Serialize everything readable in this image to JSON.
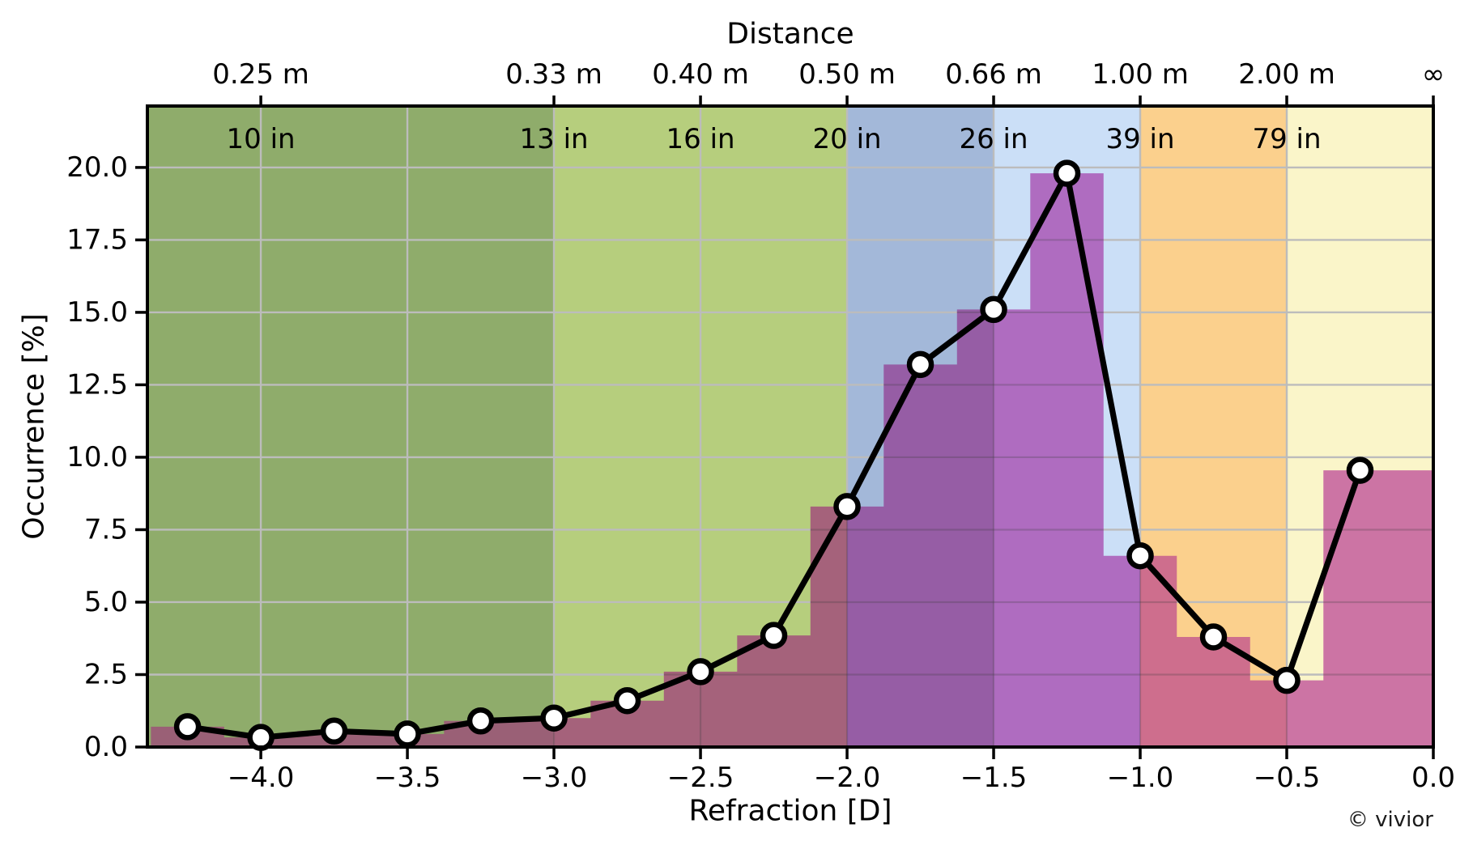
{
  "chart_data": {
    "type": "line",
    "title": "",
    "top_axis_title": "Distance",
    "xlabel": "Refraction [D]",
    "ylabel": "Occurrence [%]",
    "watermark": "© vivior",
    "xlim": [
      -4.387,
      0
    ],
    "ylim": [
      0,
      22.12
    ],
    "grid": true,
    "x": [
      -4.25,
      -4.0,
      -3.75,
      -3.5,
      -3.25,
      -3.0,
      -2.75,
      -2.5,
      -2.25,
      -2.0,
      -1.75,
      -1.5,
      -1.25,
      -1.0,
      -0.75,
      -0.5,
      -0.25
    ],
    "series": [
      {
        "name": "occurrence line",
        "type": "line",
        "values": [
          0.7,
          0.33,
          0.55,
          0.45,
          0.9,
          1.0,
          1.6,
          2.6,
          3.85,
          8.3,
          13.2,
          15.1,
          19.8,
          6.6,
          3.8,
          2.3,
          9.55
        ]
      },
      {
        "name": "occurrence histogram",
        "type": "bar",
        "bar_width": 0.25,
        "x": [
          -4.25,
          -4.0,
          -3.75,
          -3.5,
          -3.25,
          -3.0,
          -2.75,
          -2.5,
          -2.25,
          -2.0,
          -1.75,
          -1.5,
          -1.25,
          -1.0,
          -0.75,
          -0.5,
          -0.25,
          0.0
        ],
        "values": [
          0.7,
          0.33,
          0.55,
          0.45,
          0.9,
          1.0,
          1.6,
          2.6,
          3.85,
          8.3,
          13.2,
          15.1,
          19.8,
          6.6,
          3.8,
          2.3,
          9.55,
          9.55
        ]
      }
    ],
    "xticks": {
      "values": [
        -4.0,
        -3.5,
        -3.0,
        -2.5,
        -2.0,
        -1.5,
        -1.0,
        -0.5,
        0.0
      ],
      "labels": [
        "−4.0",
        "−3.5",
        "−3.0",
        "−2.5",
        "−2.0",
        "−1.5",
        "−1.0",
        "−0.5",
        "0.0"
      ]
    },
    "yticks": {
      "values": [
        0,
        2.5,
        5,
        7.5,
        10,
        12.5,
        15,
        17.5,
        20
      ],
      "labels": [
        "0.0",
        "2.5",
        "5.0",
        "7.5",
        "10.0",
        "12.5",
        "15.0",
        "17.5",
        "20.0"
      ]
    },
    "top_ticks": [
      {
        "x": -4.0,
        "metric": "0.25 m",
        "imperial": "10 in"
      },
      {
        "x": -3.0,
        "metric": "0.33 m",
        "imperial": "13 in"
      },
      {
        "x": -2.5,
        "metric": "0.40 m",
        "imperial": "16 in"
      },
      {
        "x": -2.0,
        "metric": "0.50 m",
        "imperial": "20 in"
      },
      {
        "x": -1.5,
        "metric": "0.66 m",
        "imperial": "26 in"
      },
      {
        "x": -1.0,
        "metric": "1.00 m",
        "imperial": "39 in"
      },
      {
        "x": -0.5,
        "metric": "2.00 m",
        "imperial": "79 in"
      },
      {
        "x": 0.0,
        "metric": "∞",
        "imperial": ""
      }
    ],
    "zones": [
      {
        "from": -4.387,
        "to": -3.0,
        "bg_color": "#8FAC6B",
        "bar_color": "#9A6076"
      },
      {
        "from": -3.0,
        "to": -2.0,
        "bg_color": "#B6CE7D",
        "bar_color": "#A5627B"
      },
      {
        "from": -2.0,
        "to": -1.5,
        "bg_color": "#A3B8D9",
        "bar_color": "#965DA5"
      },
      {
        "from": -1.5,
        "to": -1.0,
        "bg_color": "#CBDFF7",
        "bar_color": "#AF6CC0"
      },
      {
        "from": -1.0,
        "to": -0.5,
        "bg_color": "#FBD08D",
        "bar_color": "#CE6E8D"
      },
      {
        "from": -0.5,
        "to": 0.0,
        "bg_color": "#FAF5C9",
        "bar_color": "#CC74A4"
      }
    ],
    "colors": {
      "line": "#000000",
      "marker_fill": "#ffffff",
      "marker_edge": "#000000",
      "grid": "#BCBCBC",
      "grid_over_bars": "rgba(60,60,60,0.25)",
      "spine": "#000000",
      "text": "#000000"
    }
  }
}
